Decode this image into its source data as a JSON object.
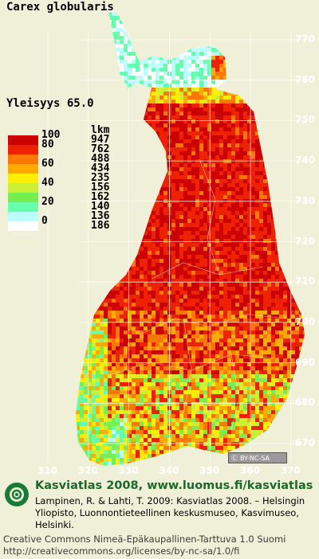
{
  "title": "Carex globularis",
  "frequency": "Yleisyys  65.0",
  "legend": {
    "count_header": "lkm",
    "classes": [
      {
        "pct": "100",
        "count": "947",
        "color": "#cc0000"
      },
      {
        "pct": "80",
        "count": "762",
        "color": "#ee2200"
      },
      {
        "pct": "",
        "count": "488",
        "color": "#ff7700"
      },
      {
        "pct": "60",
        "count": "434",
        "color": "#ffaa00"
      },
      {
        "pct": "",
        "count": "235",
        "color": "#ffee00"
      },
      {
        "pct": "40",
        "count": "156",
        "color": "#ccee33"
      },
      {
        "pct": "",
        "count": "162",
        "color": "#77ee55"
      },
      {
        "pct": "20",
        "count": "140",
        "color": "#66ffaa"
      },
      {
        "pct": "",
        "count": "136",
        "color": "#bbffff"
      },
      {
        "pct": "0",
        "count": "186",
        "color": "#ffffff"
      }
    ]
  },
  "lat_labels": [
    "770",
    "760",
    "750",
    "740",
    "730",
    "720",
    "710",
    "700",
    "690",
    "680",
    "670"
  ],
  "lon_labels": [
    "310",
    "320",
    "330",
    "340",
    "350",
    "360",
    "370"
  ],
  "license_badge": "BY-NC-SA",
  "footer": {
    "title": "Kasviatlas 2008, www.luomus.fi/kasviatlas",
    "citation": "Lampinen, R. & Lahti, T. 2009: Kasviatlas 2008. – Helsingin Yliopisto, Luonnontieteellinen keskusmuseo, Kasvimuseo, Helsinki.",
    "license": "Creative Commons Nimeä-Epäkaupallinen-Tarttuva 1.0 Suomi http://creativecommons.org/licenses/by-nc-sa/1.0/fi"
  }
}
